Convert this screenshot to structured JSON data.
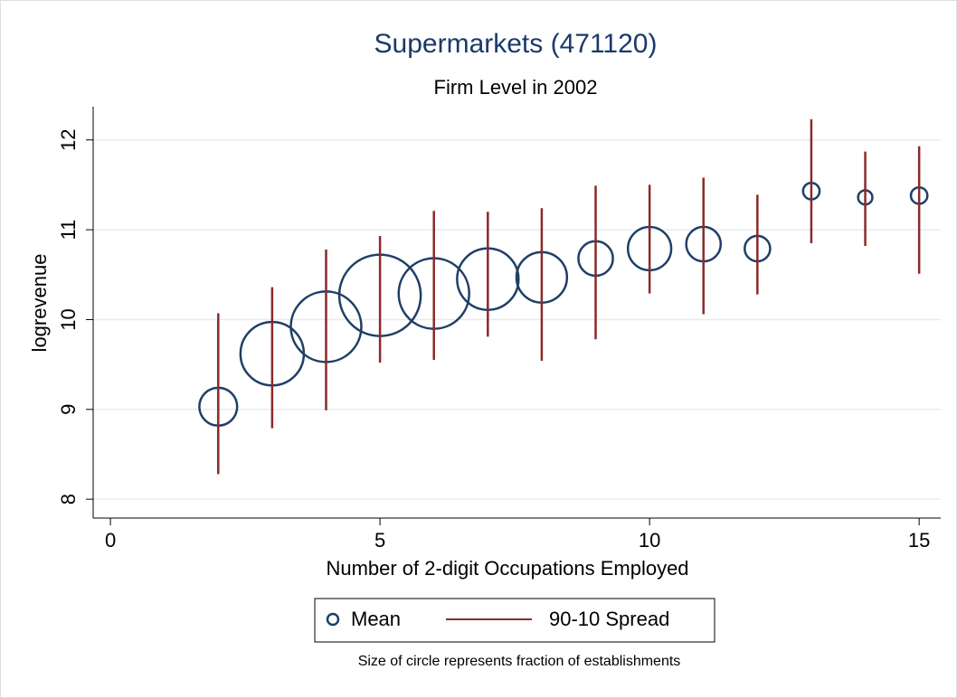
{
  "chart_data": {
    "type": "scatter",
    "title": "Supermarkets (471120)",
    "subtitle": "Firm Level in 2002",
    "x_label": "Number of 2-digit Occupations Employed",
    "y_label": "logrevenue",
    "note": "Size of circle represents fraction of establishments",
    "x": [
      2,
      3,
      4,
      5,
      6,
      7,
      8,
      9,
      10,
      11,
      12,
      13,
      14,
      15
    ],
    "series": [
      {
        "name": "Mean",
        "color": "#1f3f66",
        "values": [
          9.03,
          9.62,
          9.92,
          10.27,
          10.29,
          10.45,
          10.47,
          10.68,
          10.79,
          10.84,
          10.79,
          11.43,
          11.36,
          11.38
        ],
        "sizes": [
          0.042,
          0.118,
          0.146,
          0.195,
          0.146,
          0.111,
          0.075,
          0.035,
          0.055,
          0.035,
          0.019,
          0.008,
          0.006,
          0.008
        ]
      },
      {
        "name": "90-10 Spread",
        "color": "#8b2a2a",
        "low": [
          8.28,
          8.79,
          8.99,
          9.52,
          9.55,
          9.81,
          9.54,
          9.78,
          10.29,
          10.06,
          10.28,
          10.85,
          10.82,
          10.51
        ],
        "high": [
          10.07,
          10.36,
          10.78,
          10.93,
          11.21,
          11.2,
          11.24,
          11.49,
          11.5,
          11.58,
          11.39,
          12.23,
          11.87,
          11.93
        ]
      }
    ],
    "xlim": [
      -0.32,
      15.4
    ],
    "ylim": [
      7.79,
      12.37
    ],
    "xticks": [
      0,
      5,
      10,
      15
    ],
    "yticks": [
      8,
      9,
      10,
      11,
      12
    ],
    "grid": true
  }
}
